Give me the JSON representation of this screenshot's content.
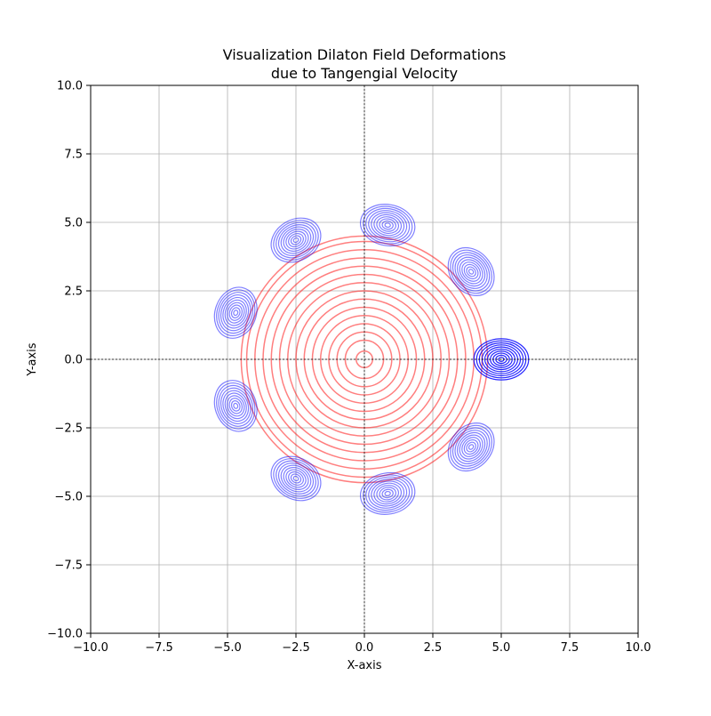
{
  "chart_data": {
    "type": "contour",
    "title_lines": [
      "Visualization Dilaton Field Deformations",
      "due to Tangengial Velocity"
    ],
    "xlabel": "X-axis",
    "ylabel": "Y-axis",
    "xlim": [
      -10,
      10
    ],
    "ylim": [
      -10,
      10
    ],
    "xticks": [
      -10.0,
      -7.5,
      -5.0,
      -2.5,
      0.0,
      2.5,
      5.0,
      7.5,
      10.0
    ],
    "yticks": [
      -10.0,
      -7.5,
      -5.0,
      -2.5,
      0.0,
      2.5,
      5.0,
      7.5,
      10.0
    ],
    "xtick_labels": [
      "−10.0",
      "−7.5",
      "−5.0",
      "−2.5",
      "0.0",
      "2.5",
      "5.0",
      "7.5",
      "10.0"
    ],
    "ytick_labels": [
      "−10.0",
      "−7.5",
      "−5.0",
      "−2.5",
      "0.0",
      "2.5",
      "5.0",
      "7.5",
      "10.0"
    ],
    "grid": true,
    "reference_lines": {
      "x": 0,
      "y": 0,
      "style": "dashed",
      "color": "#000000"
    },
    "central_field": {
      "center": [
        0,
        0
      ],
      "color": "#ff0000",
      "opacity": 0.5,
      "radii": [
        0.3,
        0.7,
        1.0,
        1.3,
        1.6,
        1.9,
        2.2,
        2.5,
        2.8,
        3.1,
        3.4,
        3.7,
        4.0,
        4.3,
        4.5
      ]
    },
    "deformed_fields": {
      "color": "#0000ff",
      "levels": 10,
      "items": [
        {
          "center": [
            5.0,
            0.0
          ],
          "rx": 0.75,
          "ry": 1.0,
          "angle_deg": 90,
          "opacity": 0.85
        },
        {
          "center": [
            3.9,
            3.2
          ],
          "rx": 0.95,
          "ry": 0.75,
          "angle_deg": -50,
          "opacity": 0.5
        },
        {
          "center": [
            0.85,
            4.9
          ],
          "rx": 1.0,
          "ry": 0.75,
          "angle_deg": -10,
          "opacity": 0.5
        },
        {
          "center": [
            -2.5,
            4.35
          ],
          "rx": 0.95,
          "ry": 0.75,
          "angle_deg": 30,
          "opacity": 0.5
        },
        {
          "center": [
            -4.7,
            1.7
          ],
          "rx": 0.95,
          "ry": 0.75,
          "angle_deg": 70,
          "opacity": 0.5
        },
        {
          "center": [
            -4.7,
            -1.7
          ],
          "rx": 0.95,
          "ry": 0.75,
          "angle_deg": -70,
          "opacity": 0.5
        },
        {
          "center": [
            -2.5,
            -4.35
          ],
          "rx": 0.95,
          "ry": 0.75,
          "angle_deg": -30,
          "opacity": 0.5
        },
        {
          "center": [
            0.85,
            -4.9
          ],
          "rx": 1.0,
          "ry": 0.75,
          "angle_deg": 10,
          "opacity": 0.5
        },
        {
          "center": [
            3.9,
            -3.2
          ],
          "rx": 0.95,
          "ry": 0.75,
          "angle_deg": 50,
          "opacity": 0.5
        }
      ]
    }
  }
}
